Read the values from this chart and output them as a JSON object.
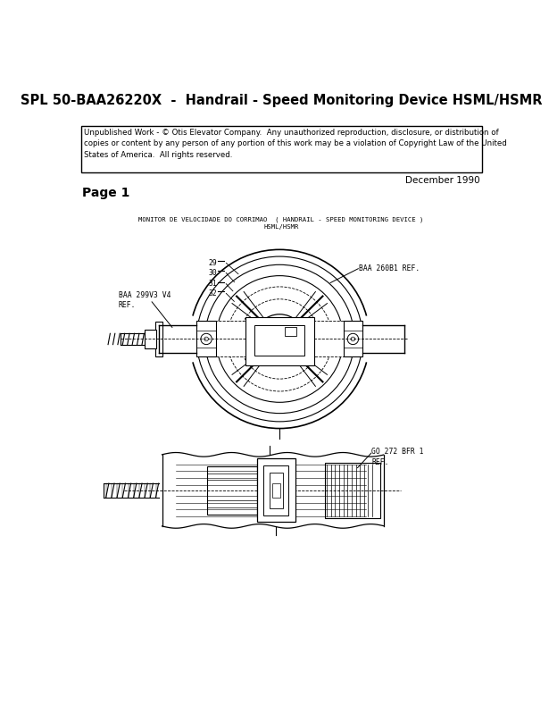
{
  "title": "SPL 50-BAA26220X  -  Handrail - Speed Monitoring Device HSML/HSMR",
  "copyright_text": "Unpublished Work - © Otis Elevator Company.  Any unauthorized reproduction, disclosure, or distribution of\ncopies or content by any person of any portion of this work may be a violation of Copyright Law of the United\nStates of America.  All rights reserved.",
  "date_text": "December 1990",
  "page_text": "Page 1",
  "diagram_title_line1": "MONITOR DE VELOCIDADE DO CORRIMAO  ( HANDRAIL - SPEED MONITORING DEVICE )",
  "diagram_title_line2": "HSML/HSMR",
  "label_baa260b1": "BAA 260B1 REF.",
  "label_baa299v3v4": "BAA 299V3 V4\nREF.",
  "label_go272": "GO 272 BFR 1\nREF.",
  "bg_color": "#ffffff",
  "line_color": "#000000",
  "title_fontsize": 10.5,
  "body_fontsize": 7.5,
  "small_fontsize": 6.0
}
